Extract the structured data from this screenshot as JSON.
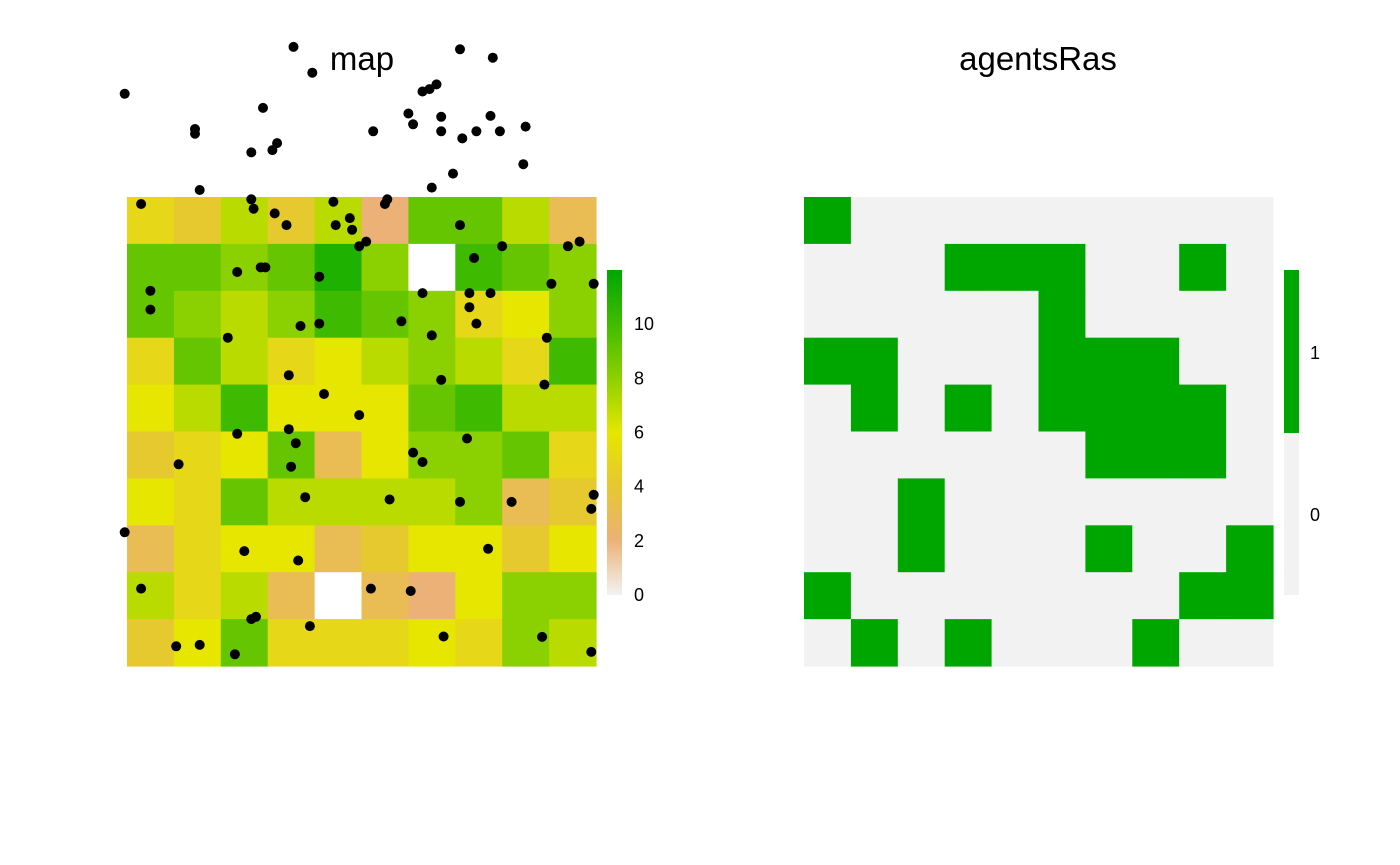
{
  "chart_data": [
    {
      "type": "heatmap",
      "title": "map",
      "nrow": 10,
      "ncol": 10,
      "values": [
        [
          5,
          4,
          7,
          4,
          7,
          2,
          9,
          9,
          7,
          3
        ],
        [
          9,
          9,
          8,
          9,
          11,
          8,
          null,
          10,
          9,
          8
        ],
        [
          9,
          8,
          7,
          8,
          10,
          9,
          8,
          5,
          6,
          8
        ],
        [
          5,
          9,
          7,
          5,
          6,
          7,
          8,
          7,
          5,
          10
        ],
        [
          6,
          7,
          10,
          6,
          6,
          6,
          9,
          10,
          7,
          7
        ],
        [
          4,
          5,
          6,
          9,
          3,
          6,
          8,
          8,
          9,
          5
        ],
        [
          6,
          5,
          9,
          7,
          7,
          7,
          7,
          8,
          3,
          4
        ],
        [
          3,
          5,
          6,
          6,
          3,
          4,
          6,
          6,
          4,
          6
        ],
        [
          7,
          5,
          7,
          3,
          null,
          3,
          2,
          6,
          8,
          8
        ],
        [
          4,
          6,
          9,
          5,
          5,
          5,
          6,
          5,
          8,
          7
        ]
      ],
      "colorbar": {
        "ticks": [
          0,
          2,
          4,
          6,
          8,
          10
        ],
        "range": [
          0,
          12
        ]
      },
      "agents": [
        [
          -0.05,
          12.2
        ],
        [
          2.9,
          11.9
        ],
        [
          6.6,
          12.4
        ],
        [
          3.2,
          11.15
        ],
        [
          6.1,
          11.55
        ],
        [
          6.0,
          11.78
        ],
        [
          6.7,
          11.71
        ],
        [
          7.75,
          11.73
        ],
        [
          3.95,
          12.65
        ],
        [
          7.8,
          12.97
        ],
        [
          6.3,
          12.25
        ],
        [
          3.55,
          13.2
        ],
        [
          7.1,
          13.15
        ],
        [
          6.45,
          12.3
        ],
        [
          1.45,
          11.45
        ],
        [
          1.45,
          11.35
        ],
        [
          2.65,
          10.95
        ],
        [
          3.1,
          11.0
        ],
        [
          5.25,
          11.4
        ],
        [
          6.7,
          11.4
        ],
        [
          7.15,
          11.25
        ],
        [
          7.45,
          11.4
        ],
        [
          7.95,
          11.4
        ],
        [
          8.5,
          11.5
        ],
        [
          8.45,
          10.7
        ],
        [
          0.3,
          9.85
        ],
        [
          1.55,
          10.15
        ],
        [
          2.65,
          9.95
        ],
        [
          2.7,
          9.75
        ],
        [
          3.15,
          9.65
        ],
        [
          3.4,
          9.4
        ],
        [
          4.4,
          9.9
        ],
        [
          4.45,
          9.4
        ],
        [
          4.8,
          9.3
        ],
        [
          4.95,
          8.95
        ],
        [
          5.5,
          9.85
        ],
        [
          5.55,
          9.95
        ],
        [
          6.5,
          10.2
        ],
        [
          6.95,
          10.5
        ],
        [
          7.1,
          9.4
        ],
        [
          7.4,
          8.7
        ],
        [
          8.0,
          8.95
        ],
        [
          9.4,
          8.95
        ],
        [
          9.65,
          9.05
        ],
        [
          4.75,
          9.55
        ],
        [
          5.1,
          9.05
        ],
        [
          0.5,
          8.0
        ],
        [
          0.5,
          7.6
        ],
        [
          2.35,
          8.4
        ],
        [
          2.85,
          8.5
        ],
        [
          2.95,
          8.5
        ],
        [
          4.1,
          8.3
        ],
        [
          3.7,
          7.25
        ],
        [
          4.1,
          7.3
        ],
        [
          5.85,
          7.35
        ],
        [
          6.3,
          7.95
        ],
        [
          7.3,
          7.95
        ],
        [
          7.3,
          7.65
        ],
        [
          7.75,
          7.95
        ],
        [
          7.45,
          7.3
        ],
        [
          9.05,
          8.15
        ],
        [
          9.95,
          8.15
        ],
        [
          8.95,
          7.0
        ],
        [
          2.15,
          7.0
        ],
        [
          6.5,
          7.05
        ],
        [
          6.7,
          6.1
        ],
        [
          3.45,
          6.2
        ],
        [
          4.2,
          5.8
        ],
        [
          4.95,
          5.35
        ],
        [
          8.9,
          6.0
        ],
        [
          2.35,
          4.95
        ],
        [
          3.45,
          5.05
        ],
        [
          3.6,
          4.75
        ],
        [
          1.1,
          4.3
        ],
        [
          3.5,
          4.25
        ],
        [
          7.25,
          4.85
        ],
        [
          6.1,
          4.55
        ],
        [
          6.3,
          4.35
        ],
        [
          3.8,
          3.6
        ],
        [
          5.6,
          3.55
        ],
        [
          7.1,
          3.5
        ],
        [
          8.2,
          3.5
        ],
        [
          9.95,
          3.65
        ],
        [
          9.9,
          3.35
        ],
        [
          -0.05,
          2.85
        ],
        [
          2.5,
          2.45
        ],
        [
          3.65,
          2.25
        ],
        [
          7.7,
          2.5
        ],
        [
          0.3,
          1.65
        ],
        [
          2.65,
          1.0
        ],
        [
          2.75,
          1.05
        ],
        [
          3.9,
          0.85
        ],
        [
          5.2,
          1.65
        ],
        [
          6.05,
          1.6
        ],
        [
          1.05,
          0.42
        ],
        [
          1.55,
          0.45
        ],
        [
          2.3,
          0.25
        ],
        [
          6.75,
          0.63
        ],
        [
          8.85,
          0.62
        ],
        [
          9.9,
          0.3
        ]
      ]
    },
    {
      "type": "heatmap",
      "title": "agentsRas",
      "nrow": 10,
      "ncol": 10,
      "values": [
        [
          1,
          0,
          0,
          0,
          0,
          0,
          0,
          0,
          0,
          0
        ],
        [
          0,
          0,
          0,
          1,
          1,
          1,
          0,
          0,
          1,
          0
        ],
        [
          0,
          0,
          0,
          0,
          0,
          1,
          0,
          0,
          0,
          0
        ],
        [
          1,
          1,
          0,
          0,
          0,
          1,
          1,
          1,
          0,
          0
        ],
        [
          0,
          1,
          0,
          1,
          0,
          1,
          1,
          1,
          1,
          0
        ],
        [
          0,
          0,
          0,
          0,
          0,
          0,
          1,
          1,
          1,
          0
        ],
        [
          0,
          0,
          1,
          0,
          0,
          0,
          0,
          0,
          0,
          0
        ],
        [
          0,
          0,
          1,
          0,
          0,
          0,
          1,
          0,
          0,
          1
        ],
        [
          1,
          0,
          0,
          0,
          0,
          0,
          0,
          0,
          1,
          1
        ],
        [
          0,
          1,
          0,
          1,
          0,
          0,
          0,
          1,
          0,
          0
        ]
      ],
      "legend": {
        "labels": [
          "1",
          "0"
        ],
        "colors": [
          "#00a600",
          "#f2f2f2"
        ]
      }
    }
  ]
}
